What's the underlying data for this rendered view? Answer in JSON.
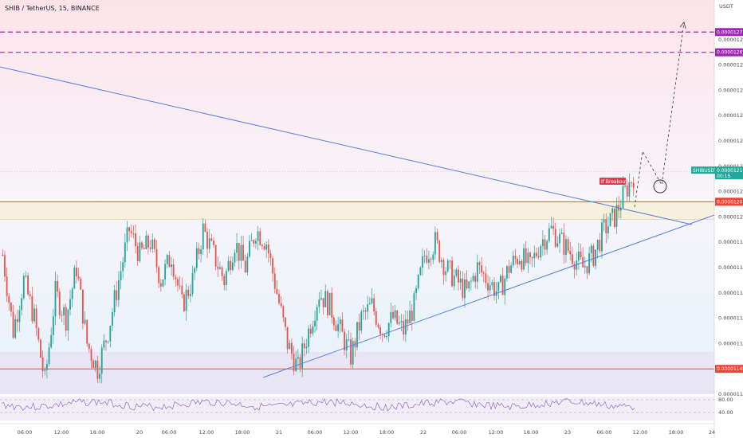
{
  "header": {
    "title": "SHIB / TetherUS, 15, BINANCE"
  },
  "axis": {
    "unit": "USDT"
  },
  "colors": {
    "up": "#26a69a",
    "down": "#ef5350",
    "trend": "#5b7fe0",
    "target": "#9c27b0",
    "level": "#f44336",
    "rsi": "#7e57c2"
  },
  "chart_data": {
    "type": "candlestick",
    "ylim": [
      1.13e-05,
      1.28e-05
    ],
    "yticks": [
      "0.00001270",
      "0.00001260",
      "0.00001250",
      "0.00001240",
      "0.00001230",
      "0.00001220",
      "0.00001210",
      "0.00001200",
      "0.00001190",
      "0.00001180",
      "0.00001170",
      "0.00001160",
      "0.00001150",
      "0.00001140",
      "0.00001130"
    ],
    "xticks": [
      "06:00",
      "12:00",
      "18:00",
      "20",
      "06:00",
      "12:00",
      "18:00",
      "21",
      "06:00",
      "12:00",
      "18:00",
      "22",
      "06:00",
      "12:00",
      "18:00",
      "23",
      "06:00",
      "12:00",
      "18:00",
      "24"
    ],
    "price_path": [
      [
        0,
        1.185e-05
      ],
      [
        5,
        1.155e-05
      ],
      [
        10,
        1.175e-05
      ],
      [
        15,
        1.16e-05
      ],
      [
        20,
        1.135e-05
      ],
      [
        25,
        1.17e-05
      ],
      [
        30,
        1.16e-05
      ],
      [
        35,
        1.18e-05
      ],
      [
        40,
        1.15e-05
      ],
      [
        45,
        1.14e-05
      ],
      [
        50,
        1.155e-05
      ],
      [
        55,
        1.175e-05
      ],
      [
        60,
        1.195e-05
      ],
      [
        65,
        1.185e-05
      ],
      [
        70,
        1.19e-05
      ],
      [
        75,
        1.175e-05
      ],
      [
        80,
        1.185e-05
      ],
      [
        85,
        1.165e-05
      ],
      [
        90,
        1.175e-05
      ],
      [
        95,
        1.195e-05
      ],
      [
        100,
        1.185e-05
      ],
      [
        105,
        1.175e-05
      ],
      [
        110,
        1.19e-05
      ],
      [
        115,
        1.18e-05
      ],
      [
        120,
        1.195e-05
      ],
      [
        125,
        1.19e-05
      ],
      [
        130,
        1.17e-05
      ],
      [
        135,
        1.15e-05
      ],
      [
        140,
        1.14e-05
      ],
      [
        145,
        1.155e-05
      ],
      [
        150,
        1.17e-05
      ],
      [
        155,
        1.165e-05
      ],
      [
        160,
        1.155e-05
      ],
      [
        165,
        1.145e-05
      ],
      [
        170,
        1.16e-05
      ],
      [
        175,
        1.165e-05
      ],
      [
        180,
        1.155e-05
      ],
      [
        185,
        1.16e-05
      ],
      [
        190,
        1.155e-05
      ],
      [
        195,
        1.165e-05
      ],
      [
        200,
        1.185e-05
      ],
      [
        205,
        1.19e-05
      ],
      [
        210,
        1.18e-05
      ],
      [
        215,
        1.175e-05
      ],
      [
        220,
        1.17e-05
      ],
      [
        225,
        1.18e-05
      ],
      [
        230,
        1.175e-05
      ],
      [
        235,
        1.17e-05
      ],
      [
        240,
        1.18e-05
      ],
      [
        245,
        1.185e-05
      ],
      [
        250,
        1.18e-05
      ],
      [
        255,
        1.19e-05
      ],
      [
        260,
        1.195e-05
      ],
      [
        265,
        1.19e-05
      ],
      [
        270,
        1.185e-05
      ],
      [
        275,
        1.18e-05
      ],
      [
        280,
        1.185e-05
      ],
      [
        285,
        1.195e-05
      ],
      [
        290,
        1.2e-05
      ],
      [
        295,
        1.21e-05
      ],
      [
        300,
        1.218e-05
      ]
    ],
    "candle_count": 300,
    "resistance": {
      "label": "0.00001206",
      "value": 1.206e-05
    },
    "zone_bottom": 1.199e-05,
    "support": {
      "label": "0.00001140",
      "value": 1.14e-05
    },
    "target1": {
      "label": "0.00001265",
      "value": 1.265e-05
    },
    "target2": {
      "label": "0.00001273",
      "value": 1.273e-05
    },
    "last": {
      "symbol": "SHIBUSDT",
      "price": "0.00001218",
      "countdown": "00:15",
      "value": 1.218e-05
    },
    "annotation": {
      "text": "If Breakout"
    },
    "rsi": {
      "levels": [
        "80.00",
        "40.00"
      ]
    }
  }
}
